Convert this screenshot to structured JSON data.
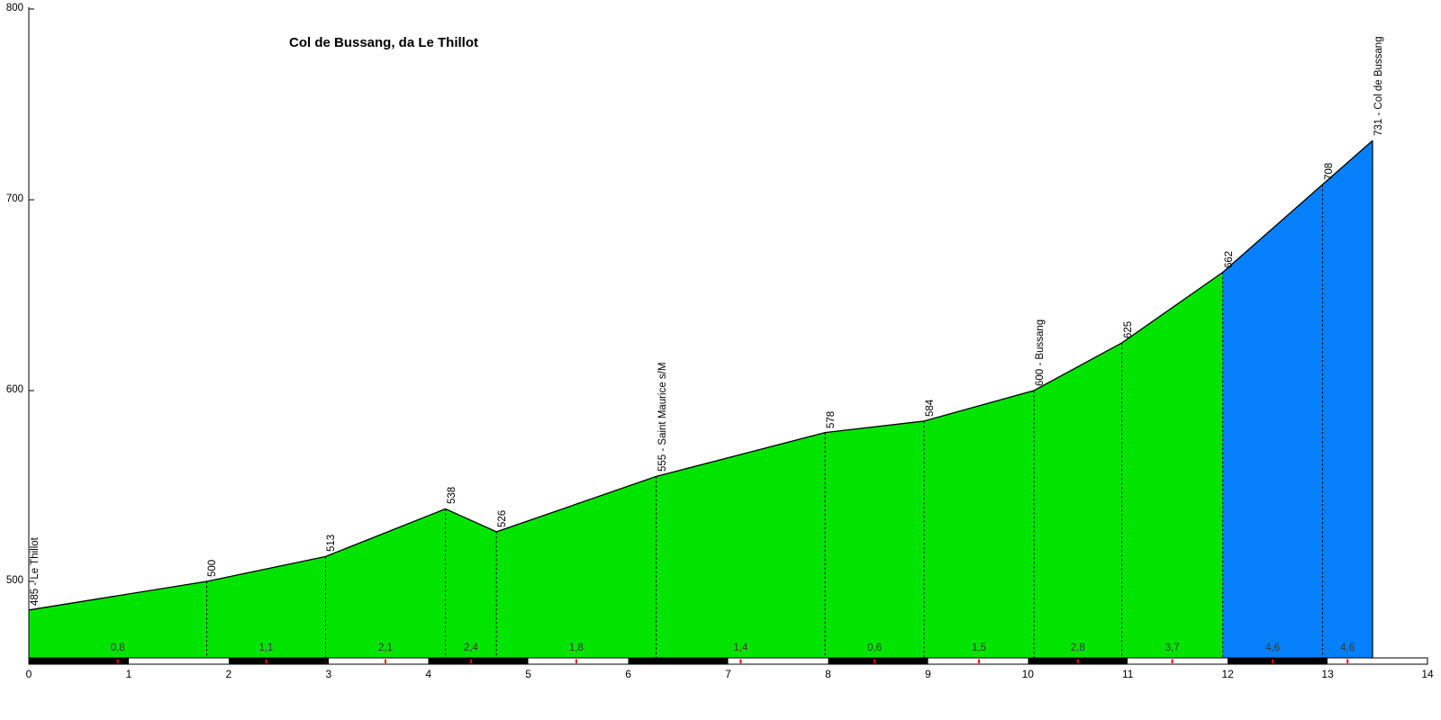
{
  "title": "Col de Bussang, da Le Thillot",
  "chart_data": {
    "type": "area",
    "title": "Col de Bussang, da Le Thillot",
    "x_unit": "km",
    "y_unit": "m",
    "xlim": [
      0,
      14
    ],
    "ylim": [
      460,
      800
    ],
    "x_ticks": [
      0,
      1,
      2,
      3,
      4,
      5,
      6,
      7,
      8,
      9,
      10,
      11,
      12,
      13,
      14
    ],
    "y_ticks": [
      500,
      600,
      700,
      800
    ],
    "grid": false,
    "legend": false,
    "points": [
      {
        "km": 0,
        "elev": 485,
        "label": "485 - Le Thillot"
      },
      {
        "km": 1.78,
        "elev": 500,
        "label": "500"
      },
      {
        "km": 2.97,
        "elev": 513,
        "label": "513"
      },
      {
        "km": 4.17,
        "elev": 538,
        "label": "538"
      },
      {
        "km": 4.68,
        "elev": 526,
        "label": "526"
      },
      {
        "km": 6.28,
        "elev": 555,
        "label": "555 - Saint Maurice s/M"
      },
      {
        "km": 7.97,
        "elev": 578,
        "label": "578"
      },
      {
        "km": 8.96,
        "elev": 584,
        "label": "584"
      },
      {
        "km": 10.06,
        "elev": 600,
        "label": "600 - Bussang"
      },
      {
        "km": 10.94,
        "elev": 625,
        "label": "625"
      },
      {
        "km": 11.95,
        "elev": 662,
        "label": "662"
      },
      {
        "km": 12.95,
        "elev": 708,
        "label": "708"
      },
      {
        "km": 13.45,
        "elev": 731,
        "label": "731 - Col de Bussang"
      }
    ],
    "segments": [
      {
        "from_km": 0,
        "to_km": 1.78,
        "gradient_label": "0,8",
        "color": "green"
      },
      {
        "from_km": 1.78,
        "to_km": 2.97,
        "gradient_label": "1,1",
        "color": "green"
      },
      {
        "from_km": 2.97,
        "to_km": 4.17,
        "gradient_label": "2,1",
        "color": "green"
      },
      {
        "from_km": 4.17,
        "to_km": 4.68,
        "gradient_label": "2,4",
        "color": "green"
      },
      {
        "from_km": 4.68,
        "to_km": 6.28,
        "gradient_label": "1,8",
        "color": "green"
      },
      {
        "from_km": 6.28,
        "to_km": 7.97,
        "gradient_label": "1,4",
        "color": "green"
      },
      {
        "from_km": 7.97,
        "to_km": 8.96,
        "gradient_label": "0,6",
        "color": "green"
      },
      {
        "from_km": 8.96,
        "to_km": 10.06,
        "gradient_label": "1,5",
        "color": "green"
      },
      {
        "from_km": 10.06,
        "to_km": 10.94,
        "gradient_label": "2,8",
        "color": "green"
      },
      {
        "from_km": 10.94,
        "to_km": 11.95,
        "gradient_label": "3,7",
        "color": "green"
      },
      {
        "from_km": 11.95,
        "to_km": 12.95,
        "gradient_label": "4,6",
        "color": "blue"
      },
      {
        "from_km": 12.95,
        "to_km": 13.45,
        "gradient_label": "4,6",
        "color": "blue"
      }
    ],
    "colors": {
      "green": "#00e400",
      "blue": "#0580fa",
      "outline": "#000000",
      "bar_black": "#000000",
      "bar_white": "#ffffff",
      "tick_red": "#ff0000",
      "gradient_text": "#383838"
    },
    "km_bar": {
      "start_km": 0,
      "end_km": 14,
      "pattern": "alternating black/white per km, black starting at even km"
    }
  }
}
